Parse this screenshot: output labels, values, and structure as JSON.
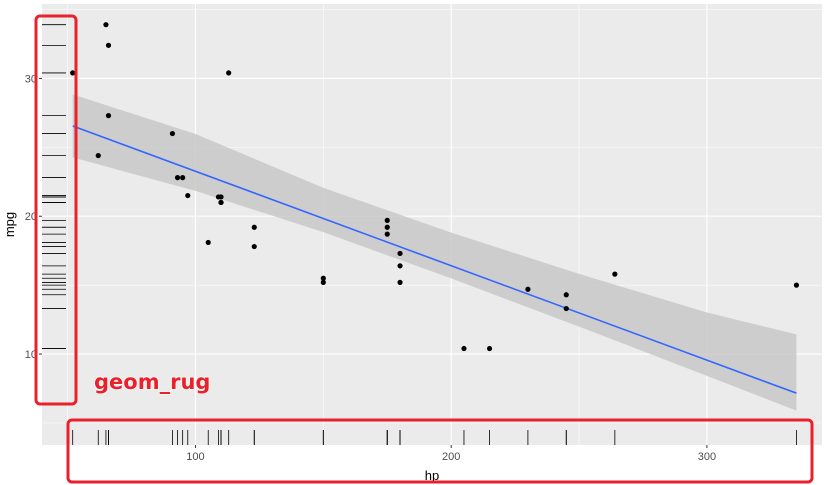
{
  "chart_data": {
    "type": "scatter",
    "title": "",
    "xlabel": "hp",
    "ylabel": "mpg",
    "xlim": [
      40,
      345
    ],
    "ylim": [
      3.4,
      35.4
    ],
    "x_ticks": [
      100,
      200,
      300
    ],
    "y_ticks": [
      10,
      20,
      30
    ],
    "grid": true,
    "points": [
      {
        "x": 110,
        "y": 21.0
      },
      {
        "x": 110,
        "y": 21.0
      },
      {
        "x": 93,
        "y": 22.8
      },
      {
        "x": 110,
        "y": 21.4
      },
      {
        "x": 175,
        "y": 18.7
      },
      {
        "x": 105,
        "y": 18.1
      },
      {
        "x": 245,
        "y": 14.3
      },
      {
        "x": 62,
        "y": 24.4
      },
      {
        "x": 95,
        "y": 22.8
      },
      {
        "x": 123,
        "y": 19.2
      },
      {
        "x": 123,
        "y": 17.8
      },
      {
        "x": 180,
        "y": 16.4
      },
      {
        "x": 180,
        "y": 17.3
      },
      {
        "x": 180,
        "y": 15.2
      },
      {
        "x": 205,
        "y": 10.4
      },
      {
        "x": 215,
        "y": 10.4
      },
      {
        "x": 230,
        "y": 14.7
      },
      {
        "x": 66,
        "y": 32.4
      },
      {
        "x": 52,
        "y": 30.4
      },
      {
        "x": 65,
        "y": 33.9
      },
      {
        "x": 97,
        "y": 21.5
      },
      {
        "x": 150,
        "y": 15.5
      },
      {
        "x": 150,
        "y": 15.2
      },
      {
        "x": 245,
        "y": 13.3
      },
      {
        "x": 175,
        "y": 19.2
      },
      {
        "x": 66,
        "y": 27.3
      },
      {
        "x": 91,
        "y": 26.0
      },
      {
        "x": 113,
        "y": 30.4
      },
      {
        "x": 264,
        "y": 15.8
      },
      {
        "x": 175,
        "y": 19.7
      },
      {
        "x": 335,
        "y": 15.0
      },
      {
        "x": 109,
        "y": 21.4
      }
    ],
    "fit_line": {
      "x": [
        52,
        335
      ],
      "y": [
        26.55,
        7.16
      ]
    },
    "confidence_band": {
      "x": [
        52,
        100,
        150,
        200,
        250,
        300,
        335
      ],
      "lower": [
        24.27,
        21.84,
        18.85,
        15.49,
        11.99,
        8.42,
        5.89
      ],
      "upper": [
        28.84,
        25.97,
        22.06,
        18.81,
        15.82,
        13.01,
        11.43
      ]
    },
    "annotation": "geom_rug",
    "colors": {
      "panel": "#ebebeb",
      "grid": "#ffffff",
      "point": "#000000",
      "line": "#3366ff",
      "band": "#c8c8c8",
      "rug": "#000000",
      "highlight": "#e8212b"
    }
  }
}
